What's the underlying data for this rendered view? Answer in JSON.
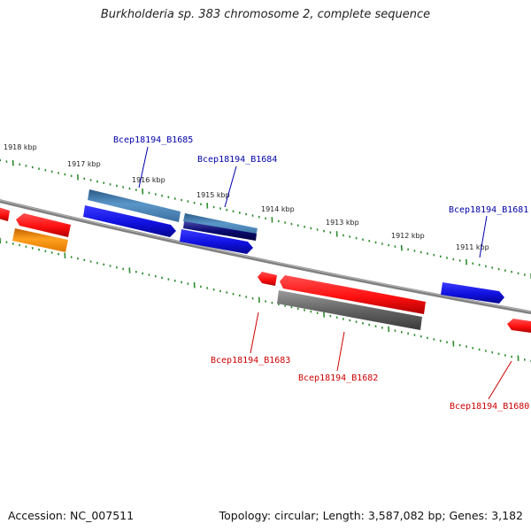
{
  "title": "Burkholderia sp. 383 chromosome 2, complete sequence",
  "footer": {
    "accession": "Accession: NC_007511",
    "summary": "Topology: circular; Length: 3,587,082 bp; Genes: 3,182"
  },
  "colors": {
    "backbone": "#808080",
    "ticks": "#2e8b2e",
    "forward_gene": "#1010e0",
    "forward_gene_light": "#4a86b8",
    "forward_gene_dark": "#0a0a70",
    "reverse_gene": "#ff1010",
    "reverse_gene_orange": "#ff9a10",
    "reverse_gene_gray": "#686868",
    "forward_label": "#0000aa",
    "reverse_label": "#cc0000"
  },
  "kbp_labels": [
    "1918 kbp",
    "1917 kbp",
    "1916 kbp",
    "1915 kbp",
    "1914 kbp",
    "1913 kbp",
    "1912 kbp",
    "1911 kbp"
  ],
  "gene_labels": {
    "top": [
      "Bcep18194_B1685",
      "Bcep18194_B1684",
      "Bcep18194_B1681"
    ],
    "bottom": [
      "Bcep18194_B1683",
      "Bcep18194_B1682",
      "Bcep18194_B1680"
    ]
  }
}
